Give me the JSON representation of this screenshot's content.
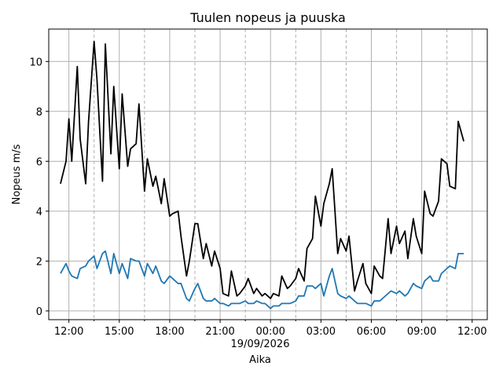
{
  "chart_data": {
    "type": "line",
    "title": "Tuulen nopeus ja puuska",
    "xlabel": "Aika",
    "ylabel": "Nopeus m/s",
    "date_label": "19/09/2026",
    "x_unit": "hours",
    "xlim": [
      10.8,
      36.9
    ],
    "ylim": [
      -0.35,
      11.3
    ],
    "x_ticks": [
      {
        "value": 12,
        "label": "12:00"
      },
      {
        "value": 15,
        "label": "15:00"
      },
      {
        "value": 18,
        "label": "18:00"
      },
      {
        "value": 21,
        "label": "21:00"
      },
      {
        "value": 24,
        "label": "00:00"
      },
      {
        "value": 27,
        "label": "03:00"
      },
      {
        "value": 30,
        "label": "06:00"
      },
      {
        "value": 33,
        "label": "09:00"
      },
      {
        "value": 36,
        "label": "12:00"
      }
    ],
    "x_minor_ticks": [
      13.5,
      16.5,
      19.5,
      22.5,
      25.5,
      28.5,
      31.5,
      34.5
    ],
    "y_ticks": [
      0,
      2,
      4,
      6,
      8,
      10
    ],
    "grid": true,
    "series": [
      {
        "color": "#000000",
        "x": [
          11.5,
          11.83,
          12.0,
          12.17,
          12.5,
          12.67,
          13.0,
          13.17,
          13.5,
          13.67,
          14.0,
          14.17,
          14.5,
          14.67,
          15.0,
          15.17,
          15.5,
          15.67,
          16.0,
          16.17,
          16.5,
          16.67,
          17.0,
          17.17,
          17.5,
          17.67,
          18.0,
          18.17,
          18.5,
          18.67,
          19.0,
          19.17,
          19.5,
          19.67,
          20.0,
          20.17,
          20.5,
          20.67,
          21.0,
          21.17,
          21.5,
          21.67,
          22.0,
          22.17,
          22.5,
          22.67,
          23.0,
          23.17,
          23.5,
          23.67,
          24.0,
          24.17,
          24.5,
          24.67,
          25.0,
          25.17,
          25.5,
          25.67,
          26.0,
          26.17,
          26.5,
          26.67,
          27.0,
          27.17,
          27.5,
          27.67,
          28.0,
          28.17,
          28.5,
          28.67,
          29.0,
          29.17,
          29.5,
          29.67,
          30.0,
          30.17,
          30.5,
          30.67,
          31.0,
          31.17,
          31.5,
          31.67,
          32.0,
          32.17,
          32.5,
          32.67,
          33.0,
          33.17,
          33.5,
          33.67,
          34.0,
          34.17,
          34.5,
          34.67,
          35.0,
          35.17,
          35.5
        ],
        "y": [
          5.1,
          6.0,
          7.7,
          6.0,
          9.8,
          6.9,
          5.1,
          7.6,
          10.8,
          9.3,
          5.2,
          10.7,
          6.3,
          9.0,
          5.7,
          8.7,
          5.8,
          6.5,
          6.7,
          8.3,
          4.8,
          6.1,
          5.0,
          5.4,
          4.3,
          5.3,
          3.8,
          3.9,
          4.0,
          3.0,
          1.4,
          2.0,
          3.5,
          3.5,
          2.1,
          2.7,
          1.8,
          2.4,
          1.7,
          0.7,
          0.6,
          1.6,
          0.6,
          0.7,
          1.0,
          1.3,
          0.7,
          0.9,
          0.6,
          0.7,
          0.5,
          0.7,
          0.6,
          1.4,
          0.9,
          1.0,
          1.3,
          1.7,
          1.2,
          2.5,
          2.9,
          4.6,
          3.4,
          4.3,
          5.1,
          5.7,
          2.3,
          2.9,
          2.4,
          3.0,
          0.8,
          1.2,
          1.9,
          1.1,
          0.7,
          1.8,
          1.4,
          1.3,
          3.7,
          2.3,
          3.4,
          2.7,
          3.2,
          2.1,
          3.7,
          3.0,
          2.3,
          4.8,
          3.9,
          3.8,
          4.4,
          6.1,
          5.9,
          5.0,
          4.9,
          7.6,
          6.8
        ]
      },
      {
        "color": "#1f77b4",
        "x": [
          11.5,
          11.83,
          12.0,
          12.17,
          12.5,
          12.67,
          13.0,
          13.17,
          13.5,
          13.67,
          14.0,
          14.17,
          14.5,
          14.67,
          15.0,
          15.17,
          15.5,
          15.67,
          16.0,
          16.17,
          16.5,
          16.67,
          17.0,
          17.17,
          17.5,
          17.67,
          18.0,
          18.17,
          18.5,
          18.67,
          19.0,
          19.17,
          19.5,
          19.67,
          20.0,
          20.17,
          20.5,
          20.67,
          21.0,
          21.17,
          21.5,
          21.67,
          22.0,
          22.17,
          22.5,
          22.67,
          23.0,
          23.17,
          23.5,
          23.67,
          24.0,
          24.17,
          24.5,
          24.67,
          25.0,
          25.17,
          25.5,
          25.67,
          26.0,
          26.17,
          26.5,
          26.67,
          27.0,
          27.17,
          27.5,
          27.67,
          28.0,
          28.17,
          28.5,
          28.67,
          29.0,
          29.17,
          29.5,
          29.67,
          30.0,
          30.17,
          30.5,
          30.67,
          31.0,
          31.17,
          31.5,
          31.67,
          32.0,
          32.17,
          32.5,
          32.67,
          33.0,
          33.17,
          33.5,
          33.67,
          34.0,
          34.17,
          34.5,
          34.67,
          35.0,
          35.17,
          35.5
        ],
        "y": [
          1.5,
          1.9,
          1.6,
          1.4,
          1.3,
          1.7,
          1.8,
          2.0,
          2.2,
          1.7,
          2.3,
          2.4,
          1.5,
          2.3,
          1.5,
          1.9,
          1.3,
          2.1,
          2.0,
          2.0,
          1.4,
          1.9,
          1.5,
          1.8,
          1.2,
          1.1,
          1.4,
          1.3,
          1.1,
          1.1,
          0.5,
          0.4,
          0.9,
          1.1,
          0.5,
          0.4,
          0.4,
          0.5,
          0.3,
          0.3,
          0.2,
          0.3,
          0.3,
          0.3,
          0.4,
          0.3,
          0.3,
          0.4,
          0.3,
          0.3,
          0.1,
          0.2,
          0.2,
          0.3,
          0.3,
          0.3,
          0.4,
          0.6,
          0.6,
          1.0,
          1.0,
          0.9,
          1.1,
          0.6,
          1.4,
          1.7,
          0.7,
          0.6,
          0.5,
          0.6,
          0.4,
          0.3,
          0.3,
          0.3,
          0.2,
          0.4,
          0.4,
          0.5,
          0.7,
          0.8,
          0.7,
          0.8,
          0.6,
          0.7,
          1.1,
          1.0,
          0.9,
          1.2,
          1.4,
          1.2,
          1.2,
          1.5,
          1.7,
          1.8,
          1.7,
          2.3,
          2.3
        ]
      }
    ]
  }
}
